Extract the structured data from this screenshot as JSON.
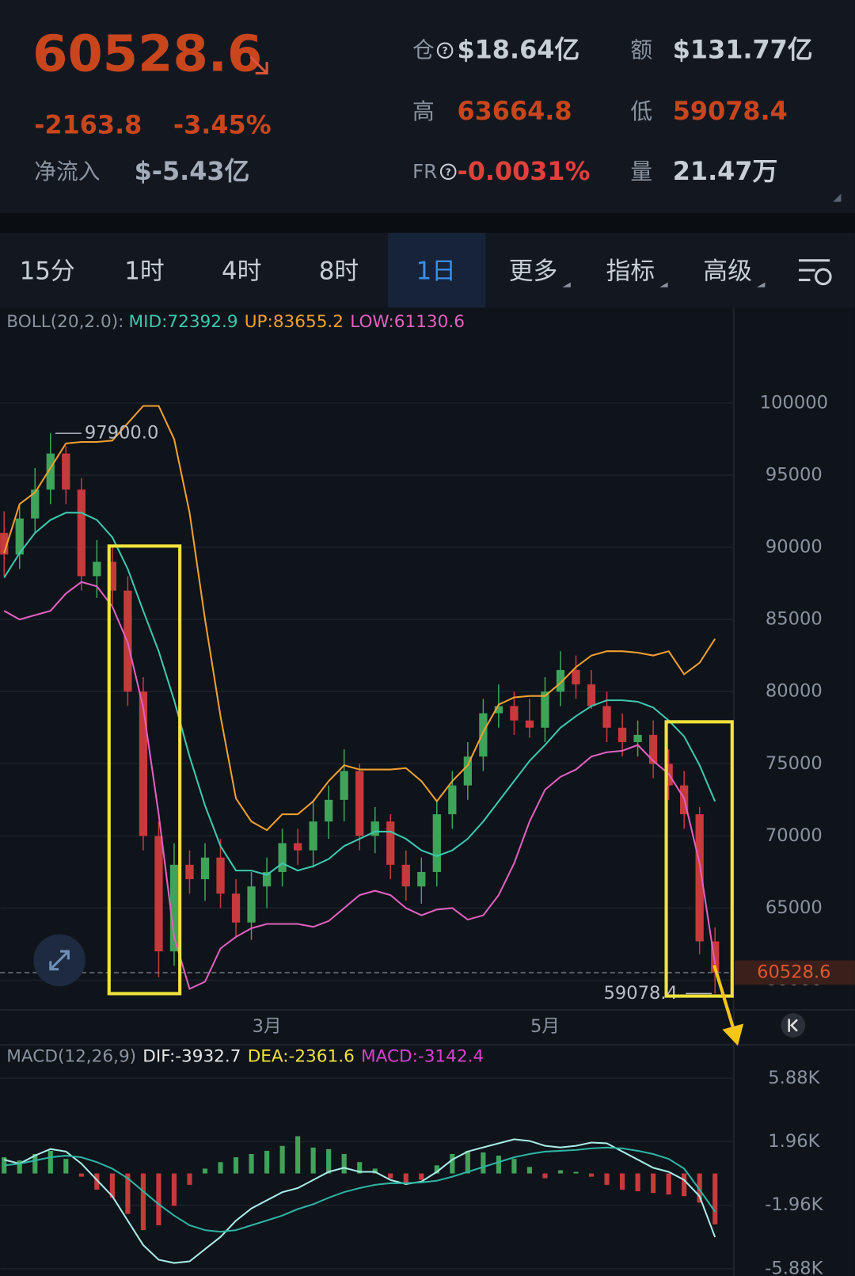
{
  "header": {
    "price": "60528.6",
    "change": "-2163.8",
    "change_pct": "-3.45%",
    "net_inflow_label": "净流入",
    "net_inflow": "$-5.43亿",
    "stats": [
      {
        "label": "仓",
        "value": "$18.64亿"
      },
      {
        "label": "额",
        "value": "$131.77亿"
      },
      {
        "label": "高",
        "value": "63664.8"
      },
      {
        "label": "低",
        "value": "59078.4"
      },
      {
        "label": "FR",
        "value": "-0.0031%"
      },
      {
        "label": "量",
        "value": "21.47万"
      }
    ]
  },
  "tabs": [
    {
      "label": "15分"
    },
    {
      "label": "1时"
    },
    {
      "label": "4时"
    },
    {
      "label": "8时"
    },
    {
      "label": "1日",
      "active": true
    },
    {
      "label": "更多"
    },
    {
      "label": "指标"
    },
    {
      "label": "高级"
    }
  ],
  "chart_data": [
    {
      "type": "candlestick",
      "indicator": "BOLL(20,2.0):",
      "categories": [
        null,
        null,
        null,
        null,
        null,
        null,
        null,
        null,
        null,
        null,
        null,
        null,
        null,
        null,
        null,
        null,
        null,
        "3月",
        null,
        null,
        null,
        null,
        null,
        null,
        null,
        null,
        null,
        null,
        null,
        null,
        null,
        null,
        null,
        null,
        null,
        "5月",
        null,
        null,
        null,
        null,
        null,
        null,
        null,
        null,
        null,
        null,
        null
      ],
      "open": [
        91000,
        89500,
        92000,
        94000,
        96500,
        94000,
        88000,
        89000,
        87000,
        80000,
        70000,
        62000,
        68000,
        67000,
        68500,
        66000,
        64000,
        66500,
        67500,
        69500,
        69000,
        71000,
        72500,
        74500,
        70000,
        71000,
        68000,
        66500,
        67500,
        71500,
        73500,
        75500,
        78500,
        79000,
        78000,
        77500,
        80000,
        81500,
        80500,
        79000,
        77500,
        76500,
        77000,
        75000,
        73500,
        71500,
        62692.4
      ],
      "high": [
        92500,
        93000,
        95500,
        97900,
        97000,
        94800,
        90500,
        90000,
        88000,
        81000,
        71000,
        69500,
        69000,
        69500,
        69800,
        67000,
        67500,
        68500,
        70500,
        70500,
        72500,
        73500,
        76000,
        75000,
        72000,
        71500,
        69000,
        68500,
        72500,
        74500,
        76500,
        79500,
        80500,
        80000,
        79500,
        81000,
        82800,
        82500,
        81500,
        80000,
        78500,
        78000,
        78000,
        76000,
        74500,
        72000,
        63664.8
      ],
      "low": [
        88000,
        88500,
        91000,
        93000,
        93000,
        87000,
        86500,
        86000,
        79000,
        69000,
        60200,
        61000,
        66000,
        65500,
        65000,
        63000,
        62800,
        65000,
        66500,
        68000,
        67800,
        69800,
        71000,
        69000,
        68800,
        67000,
        65500,
        65300,
        66500,
        70500,
        72500,
        74500,
        77500,
        77000,
        76800,
        76500,
        79000,
        79500,
        78800,
        76500,
        75500,
        75500,
        74000,
        72500,
        70500,
        61800,
        59078.4
      ],
      "close": [
        89500,
        92000,
        94000,
        96500,
        94000,
        88000,
        89000,
        87000,
        80000,
        70000,
        62000,
        68000,
        67000,
        68500,
        66000,
        64000,
        66500,
        67500,
        69500,
        69000,
        71000,
        72500,
        74500,
        70000,
        71000,
        68000,
        66500,
        67500,
        71500,
        73500,
        75500,
        78500,
        79000,
        78000,
        77500,
        80000,
        81500,
        80500,
        79000,
        77500,
        76500,
        77000,
        75000,
        73500,
        71500,
        62692.4,
        60528.6
      ],
      "up_color": "#3fa35a",
      "down_color": "#c63a3c",
      "series": [
        {
          "name": "MID:72392.9",
          "color": "#3cc8b0",
          "values": [
            87900,
            89600,
            91000,
            91900,
            92400,
            92400,
            91900,
            90700,
            88500,
            85600,
            82800,
            79400,
            75500,
            72100,
            69300,
            67600,
            67600,
            67300,
            68100,
            67600,
            67900,
            68400,
            69300,
            69800,
            70300,
            70300,
            69800,
            69000,
            68600,
            69000,
            69800,
            71000,
            72400,
            73800,
            75200,
            76300,
            77500,
            78300,
            79000,
            79400,
            79400,
            79300,
            78900,
            78000,
            76900,
            74900,
            72392.9
          ]
        },
        {
          "name": "UP:83655.2",
          "color": "#f0a030",
          "values": [
            89600,
            93000,
            93800,
            95500,
            97200,
            97300,
            97300,
            97400,
            98600,
            99800,
            99800,
            97500,
            92400,
            85000,
            78300,
            72600,
            71000,
            70400,
            71500,
            71500,
            72400,
            73800,
            74900,
            74600,
            74600,
            74600,
            74700,
            73800,
            72400,
            73800,
            74900,
            77200,
            79100,
            79600,
            79700,
            79700,
            80600,
            81700,
            82500,
            82800,
            82800,
            82700,
            82500,
            82800,
            81200,
            82000,
            83655.2
          ]
        },
        {
          "name": "LOW:61130.6",
          "color": "#e060c0",
          "values": [
            85600,
            85000,
            85300,
            85600,
            86800,
            87600,
            87300,
            85900,
            83400,
            78900,
            71500,
            63000,
            59400,
            59900,
            62200,
            63000,
            63600,
            63900,
            63900,
            63900,
            63700,
            64100,
            65000,
            65900,
            66200,
            65900,
            65000,
            64500,
            64900,
            65000,
            64200,
            64500,
            65900,
            68100,
            71000,
            73200,
            74100,
            74600,
            75500,
            75800,
            75900,
            76300,
            75200,
            74300,
            72600,
            68100,
            61130.6
          ]
        }
      ],
      "max_label": "97900.0",
      "min_label": "59078.4",
      "last_price_label": "60528.6",
      "ylim": [
        58000,
        106500
      ],
      "yticks": [
        100000,
        95000,
        90000,
        85000,
        80000,
        75000,
        70000,
        65000,
        60000
      ],
      "grid": true
    },
    {
      "type": "macd",
      "indicator": "MACD(12,26,9)",
      "series": [
        {
          "name": "DIF:-3932.7",
          "color": "#a8ece6",
          "label_color": "#e6e6e6",
          "values": [
            854,
            603,
            1106,
            1508,
            1357,
            603,
            -402,
            -1407,
            -2915,
            -4423,
            -5327,
            -5528,
            -5428,
            -4674,
            -3920,
            -2915,
            -2161,
            -1659,
            -1156,
            -905,
            -402,
            101,
            352,
            101,
            101,
            -402,
            -653,
            -503,
            101,
            854,
            1357,
            1608,
            1860,
            2111,
            2010,
            1709,
            1608,
            1709,
            1910,
            1860,
            1357,
            854,
            352,
            101,
            -402,
            -1407,
            -3932.7
          ]
        },
        {
          "name": "DEA:-2361.6",
          "color": "#2fb3a3",
          "label_color": "#f0e040",
          "values": [
            500,
            600,
            800,
            1000,
            1100,
            1000,
            700,
            300,
            -300,
            -1100,
            -1900,
            -2600,
            -3200,
            -3500,
            -3600,
            -3500,
            -3200,
            -2900,
            -2600,
            -2200,
            -1900,
            -1500,
            -1150,
            -900,
            -700,
            -600,
            -600,
            -550,
            -450,
            -200,
            100,
            400,
            700,
            1000,
            1200,
            1350,
            1400,
            1450,
            1550,
            1600,
            1550,
            1400,
            1200,
            900,
            300,
            -1000,
            -2361.6
          ]
        },
        {
          "name": "MACD:-3142.4",
          "label_color": "#d840d0",
          "up_color": "#3fa35a",
          "down_color": "#c63a3c",
          "values": [
            1000,
            800,
            1200,
            1400,
            900,
            -200,
            -1000,
            -1500,
            -2500,
            -3500,
            -3200,
            -2000,
            -700,
            300,
            700,
            1000,
            1200,
            1400,
            1700,
            2300,
            1600,
            1500,
            1200,
            700,
            300,
            -300,
            -600,
            -400,
            500,
            1200,
            1400,
            1300,
            1100,
            900,
            400,
            -300,
            200,
            100,
            -200,
            -700,
            -1000,
            -1100,
            -1200,
            -1300,
            -1400,
            -1800,
            -3142.4
          ]
        }
      ],
      "ylim": [
        -6332,
        7890
      ],
      "yticks": [
        {
          "value": 5880,
          "label": "5.88K"
        },
        {
          "value": 1960,
          "label": "1.96K"
        },
        {
          "value": -1960,
          "label": "-1.96K"
        },
        {
          "value": -5880,
          "label": "-5.88K"
        }
      ],
      "grid": true
    }
  ]
}
